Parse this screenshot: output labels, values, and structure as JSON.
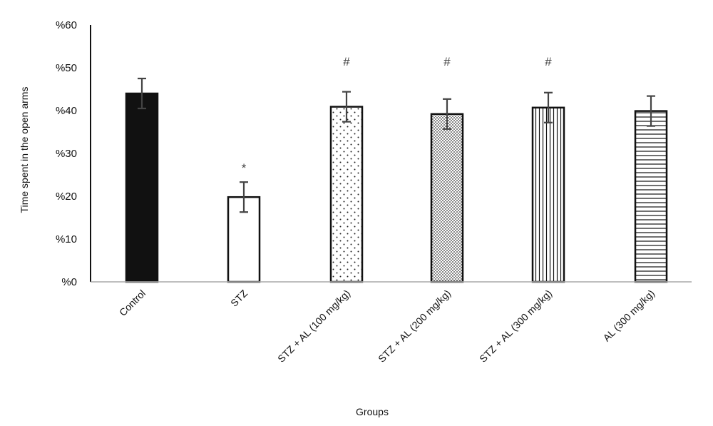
{
  "chart_data": {
    "type": "bar",
    "xlabel": "Groups",
    "ylabel": "Time spent in the open arms",
    "ylim": [
      0,
      60
    ],
    "y_ticks": [
      0,
      10,
      20,
      30,
      40,
      50,
      60
    ],
    "y_tick_labels": [
      "%0",
      "%10",
      "%20",
      "%30",
      "%40",
      "%50",
      "%60"
    ],
    "grid": false,
    "legend": "none",
    "categories": [
      "Control",
      "STZ",
      "STZ + AL (100 mg/kg)",
      "STZ + AL (200 mg/kg)",
      "STZ + AL (300 mg/kg)",
      "AL (300 mg/kg)"
    ],
    "values": [
      44,
      19.8,
      40.9,
      39.2,
      40.7,
      39.9
    ],
    "errors": [
      3.5,
      3.5,
      3.5,
      3.5,
      3.5,
      3.5
    ],
    "significance": [
      "",
      "*",
      "#",
      "#",
      "#",
      ""
    ],
    "fills": [
      "solid",
      "none",
      "sparse-dots",
      "dense-dots",
      "vertical-lines",
      "horizontal-lines"
    ],
    "colors": {
      "bar_stroke": "#111111",
      "solid_fill": "#111111",
      "error_bar": "#444444",
      "axis": "#111111"
    }
  }
}
